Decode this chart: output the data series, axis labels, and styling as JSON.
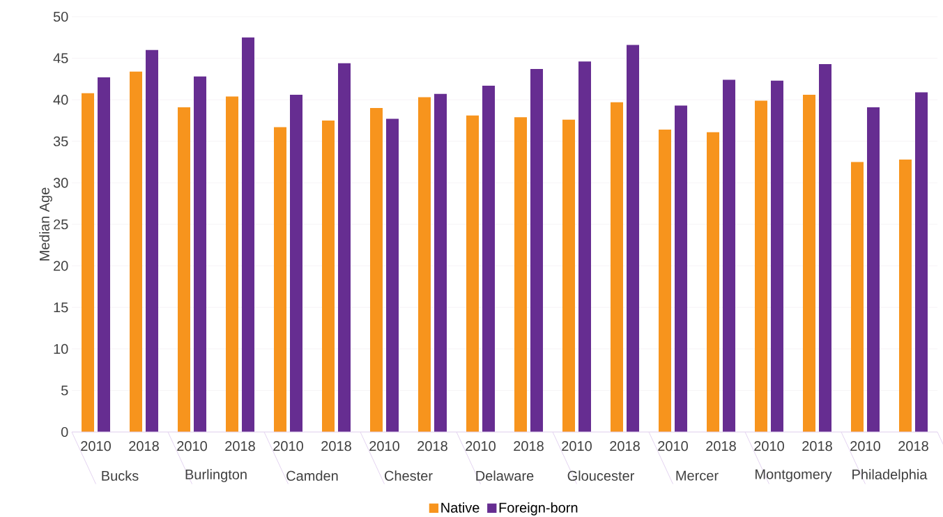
{
  "chart_data": {
    "type": "bar",
    "ylabel": "Median Age",
    "categories": [
      "2010",
      "2018",
      "2010",
      "2018",
      "2010",
      "2018",
      "2010",
      "2018",
      "2010",
      "2018",
      "2010",
      "2018",
      "2010",
      "2018",
      "2010",
      "2018",
      "2010",
      "2018"
    ],
    "annotations": [
      "Bucks",
      "Burlington",
      "Camden",
      "Chester",
      "Delaware",
      "Gloucester",
      "Mercer",
      "Montgomery",
      "Philadelphia"
    ],
    "series": [
      {
        "name": "Native",
        "color": "#f7941d",
        "values": [
          40.8,
          43.4,
          39.1,
          40.4,
          36.7,
          37.5,
          39.0,
          40.3,
          38.1,
          37.9,
          37.6,
          39.7,
          36.4,
          36.1,
          39.9,
          40.6,
          32.5,
          32.8
        ]
      },
      {
        "name": "Foreign-born",
        "color": "#662d91",
        "values": [
          42.7,
          46.0,
          42.8,
          47.5,
          40.6,
          44.4,
          37.7,
          40.7,
          41.7,
          43.7,
          44.6,
          46.6,
          39.3,
          42.4,
          42.3,
          44.3,
          39.1,
          40.9
        ]
      }
    ],
    "ylim": [
      0,
      50
    ],
    "yticks": [
      0,
      5,
      10,
      15,
      20,
      25,
      30,
      35,
      40,
      45,
      50
    ],
    "grid": "y",
    "legend": "bottom"
  }
}
